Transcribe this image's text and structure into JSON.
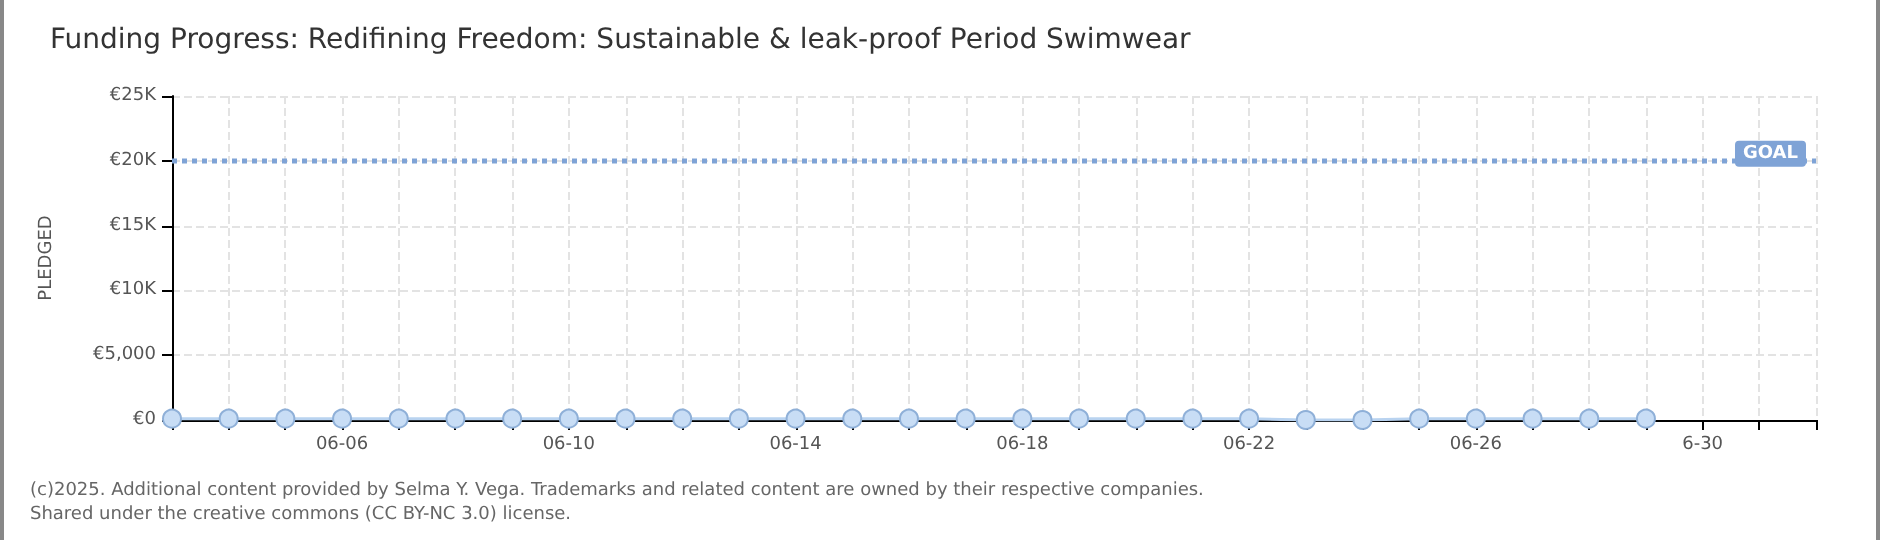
{
  "chart_data": {
    "type": "line",
    "title": "Funding Progress: Redifining Freedom: Sustainable & leak-proof Period Swimwear",
    "ylabel": "PLEDGED",
    "x": [
      "2025-06-03",
      "2025-06-04",
      "2025-06-05",
      "2025-06-06",
      "2025-06-07",
      "2025-06-08",
      "2025-06-09",
      "2025-06-10",
      "2025-06-11",
      "2025-06-12",
      "2025-06-13",
      "2025-06-14",
      "2025-06-15",
      "2025-06-16",
      "2025-06-17",
      "2025-06-18",
      "2025-06-19",
      "2025-06-20",
      "2025-06-21",
      "2025-06-22",
      "2025-06-23",
      "2025-06-24",
      "2025-06-25",
      "2025-06-26",
      "2025-06-27",
      "2025-06-28",
      "2025-06-29"
    ],
    "series": [
      {
        "color": "#b9d3f0",
        "values": [
          100,
          100,
          100,
          100,
          100,
          100,
          100,
          100,
          100,
          100,
          100,
          100,
          100,
          100,
          100,
          100,
          100,
          100,
          100,
          100,
          0,
          0,
          100,
          100,
          100,
          100,
          100
        ]
      }
    ],
    "xlim": [
      "2025-06-03",
      "2025-07-02"
    ],
    "xticks": [
      {
        "value": "2025-06-03",
        "label": null
      },
      {
        "value": "2025-06-04",
        "label": null
      },
      {
        "value": "2025-06-05",
        "label": null
      },
      {
        "value": "2025-06-06",
        "label": "06-06"
      },
      {
        "value": "2025-06-07",
        "label": null
      },
      {
        "value": "2025-06-08",
        "label": null
      },
      {
        "value": "2025-06-09",
        "label": null
      },
      {
        "value": "2025-06-10",
        "label": "06-10"
      },
      {
        "value": "2025-06-11",
        "label": null
      },
      {
        "value": "2025-06-12",
        "label": null
      },
      {
        "value": "2025-06-13",
        "label": null
      },
      {
        "value": "2025-06-14",
        "label": "06-14"
      },
      {
        "value": "2025-06-15",
        "label": null
      },
      {
        "value": "2025-06-16",
        "label": null
      },
      {
        "value": "2025-06-17",
        "label": null
      },
      {
        "value": "2025-06-18",
        "label": "06-18"
      },
      {
        "value": "2025-06-19",
        "label": null
      },
      {
        "value": "2025-06-20",
        "label": null
      },
      {
        "value": "2025-06-21",
        "label": null
      },
      {
        "value": "2025-06-22",
        "label": "06-22"
      },
      {
        "value": "2025-06-23",
        "label": null
      },
      {
        "value": "2025-06-24",
        "label": null
      },
      {
        "value": "2025-06-25",
        "label": null
      },
      {
        "value": "2025-06-26",
        "label": "06-26"
      },
      {
        "value": "2025-06-27",
        "label": null
      },
      {
        "value": "2025-06-28",
        "label": null
      },
      {
        "value": "2025-06-29",
        "label": null
      },
      {
        "value": "2025-06-30",
        "label": "6-30"
      },
      {
        "value": "2025-07-01",
        "label": null
      },
      {
        "value": "2025-07-02",
        "label": null
      }
    ],
    "ylim": [
      0,
      25000
    ],
    "yticks": [
      {
        "value": 0,
        "label": "€0"
      },
      {
        "value": 5000,
        "label": "€5,000"
      },
      {
        "value": 10000,
        "label": "€10K"
      },
      {
        "value": 15000,
        "label": "€15K"
      },
      {
        "value": 20000,
        "label": "€20K"
      },
      {
        "value": 25000,
        "label": "€25K"
      }
    ],
    "ref_lines": [
      {
        "axis": "y",
        "value": 20000,
        "label": "GOAL",
        "color": "#7fa3d6",
        "line_style": "dotted"
      }
    ],
    "annotations": [
      "(c)2025. Additional content provided by Selma Y. Vega. Trademarks and related content are owned by their respective companies.",
      "Shared under the creative commons (CC BY-NC 3.0) license."
    ],
    "grid": true,
    "marker": "circle"
  }
}
